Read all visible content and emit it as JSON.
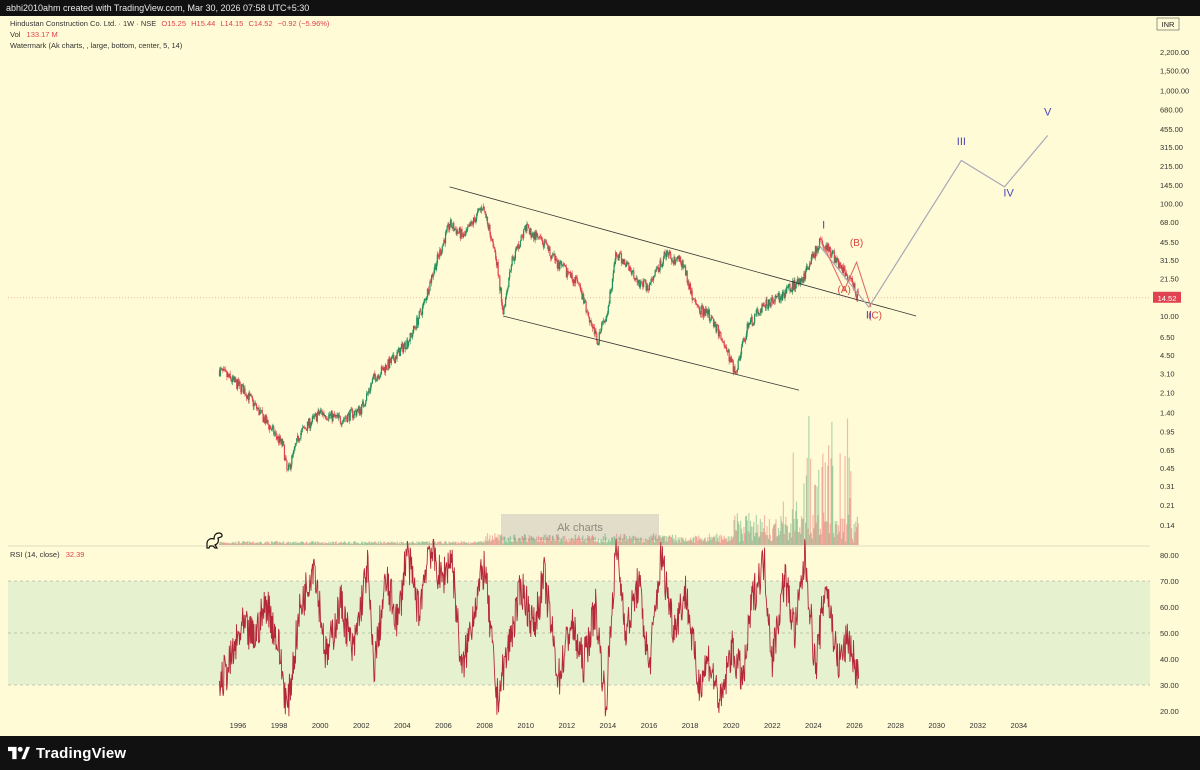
{
  "header": {
    "credit": "abhi2010ahm created with TradingView.com, Mar 30, 2026 07:58 UTC+5:30",
    "symbol_line": "Hindustan Construction Co. Ltd. · 1W · NSE",
    "ohlc": {
      "open": "O15.25",
      "high": "H15.44",
      "low": "L14.15",
      "close": "C14.52",
      "change": "−0.92 (−5.96%)"
    },
    "vol_label": "Vol",
    "vol_value": "133.17 M",
    "watermark_line": "Watermark (Ak charts, , large, bottom, center, 5, 14)",
    "rsi_label": "RSI (14, close)",
    "rsi_value": "32.39"
  },
  "watermark_text": "Ak charts",
  "footer": {
    "brand": "TradingView"
  },
  "colors": {
    "background": "#fffbd6",
    "up": "#1c8f5a",
    "down": "#e0434f",
    "rsi_line": "#b5283a",
    "rsi_band": "#e6f1cf",
    "wave_purple": "#4b44b8",
    "wave_red": "#d9453f",
    "projection": "#a8a8b8",
    "price_tag": "#e0434f"
  },
  "chart_data": {
    "type": "line",
    "scale": "log",
    "currency": "INR",
    "price_axis_ticks": [
      "2,200.00",
      "1,500.00",
      "1,000.00",
      "680.00",
      "455.00",
      "315.00",
      "215.00",
      "145.00",
      "100.00",
      "68.00",
      "45.50",
      "31.50",
      "21.50",
      "14.52",
      "10.00",
      "6.50",
      "4.50",
      "3.10",
      "2.10",
      "1.40",
      "0.95",
      "0.65",
      "0.45",
      "0.31",
      "0.21",
      "0.14"
    ],
    "rsi_axis_ticks": [
      "80.00",
      "70.00",
      "60.00",
      "50.00",
      "40.00",
      "30.00",
      "20.00"
    ],
    "time_axis_ticks": [
      "1996",
      "1998",
      "2000",
      "2002",
      "2004",
      "2006",
      "2008",
      "2010",
      "2012",
      "2014",
      "2016",
      "2018",
      "2020",
      "2022",
      "2024",
      "2026",
      "2028",
      "2030",
      "2032",
      "2034"
    ],
    "last_price": "14.52",
    "price_series_approx": [
      [
        1995.1,
        3.3
      ],
      [
        1996.3,
        2.2
      ],
      [
        1997.3,
        1.2
      ],
      [
        1998.2,
        0.7
      ],
      [
        1998.4,
        0.4
      ],
      [
        1999.0,
        0.9
      ],
      [
        2000.0,
        1.4
      ],
      [
        2001.0,
        1.2
      ],
      [
        2002.0,
        1.5
      ],
      [
        2002.6,
        2.8
      ],
      [
        2003.5,
        4.0
      ],
      [
        2004.4,
        6.5
      ],
      [
        2005.0,
        12.0
      ],
      [
        2005.5,
        25.0
      ],
      [
        2006.3,
        65.0
      ],
      [
        2007.0,
        50.0
      ],
      [
        2007.9,
        95.0
      ],
      [
        2008.5,
        40.0
      ],
      [
        2008.9,
        11.0
      ],
      [
        2009.3,
        30.0
      ],
      [
        2010.0,
        60.0
      ],
      [
        2010.8,
        45.0
      ],
      [
        2011.5,
        30.0
      ],
      [
        2012.5,
        20.0
      ],
      [
        2013.5,
        6.0
      ],
      [
        2014.0,
        12.0
      ],
      [
        2014.4,
        35.0
      ],
      [
        2015.0,
        28.0
      ],
      [
        2015.5,
        20.0
      ],
      [
        2016.0,
        18.0
      ],
      [
        2016.8,
        35.0
      ],
      [
        2017.6,
        30.0
      ],
      [
        2018.3,
        12.0
      ],
      [
        2019.0,
        10.0
      ],
      [
        2019.6,
        6.0
      ],
      [
        2020.2,
        3.1
      ],
      [
        2020.8,
        8.0
      ],
      [
        2021.5,
        12.0
      ],
      [
        2022.2,
        14.0
      ],
      [
        2022.9,
        18.0
      ],
      [
        2023.5,
        22.0
      ],
      [
        2024.0,
        35.0
      ],
      [
        2024.4,
        48.0
      ],
      [
        2024.9,
        35.0
      ],
      [
        2025.3,
        28.0
      ],
      [
        2025.8,
        21.0
      ],
      [
        2026.2,
        14.52
      ]
    ],
    "channel": {
      "upper": [
        [
          2006.3,
          140.0
        ],
        [
          2029.0,
          10.0
        ]
      ],
      "lower": [
        [
          2008.9,
          10.0
        ],
        [
          2023.3,
          2.2
        ]
      ]
    },
    "elliott_waves": {
      "labels": [
        {
          "label": "I",
          "x": 2024.5,
          "y": 60.0
        },
        {
          "label": "II",
          "x": 2026.7,
          "y": 9.5
        },
        {
          "label": "III",
          "x": 2031.2,
          "y": 330.0
        },
        {
          "label": "IV",
          "x": 2033.5,
          "y": 115.0
        },
        {
          "label": "V",
          "x": 2035.4,
          "y": 600.0
        }
      ],
      "correction_labels": [
        {
          "label": "(A)",
          "x": 2025.5,
          "y": 16.0
        },
        {
          "label": "(B)",
          "x": 2026.1,
          "y": 42.0
        },
        {
          "label": "(C)",
          "x": 2027.0,
          "y": 9.5
        }
      ],
      "projection": [
        [
          2024.3,
          42.0
        ],
        [
          2026.7,
          12.0
        ],
        [
          2031.2,
          240.0
        ],
        [
          2033.3,
          140.0
        ],
        [
          2035.4,
          400.0
        ]
      ],
      "abc_path": [
        [
          2024.5,
          42.0
        ],
        [
          2025.5,
          17.0
        ],
        [
          2026.1,
          30.0
        ],
        [
          2026.8,
          12.0
        ]
      ]
    },
    "rsi_series_approx": [
      [
        1995.1,
        30
      ],
      [
        1995.6,
        38
      ],
      [
        1996.2,
        52
      ],
      [
        1996.8,
        48
      ],
      [
        1997.4,
        62
      ],
      [
        1998.0,
        44
      ],
      [
        1998.4,
        20
      ],
      [
        1999.0,
        58
      ],
      [
        1999.7,
        78
      ],
      [
        2000.3,
        40
      ],
      [
        2001.0,
        62
      ],
      [
        2001.6,
        42
      ],
      [
        2002.3,
        76
      ],
      [
        2002.6,
        36
      ],
      [
        2003.2,
        70
      ],
      [
        2003.8,
        54
      ],
      [
        2004.2,
        82
      ],
      [
        2004.8,
        58
      ],
      [
        2005.3,
        84
      ],
      [
        2005.9,
        70
      ],
      [
        2006.4,
        80
      ],
      [
        2006.9,
        34
      ],
      [
        2007.5,
        60
      ],
      [
        2008.0,
        76
      ],
      [
        2008.6,
        24
      ],
      [
        2009.2,
        46
      ],
      [
        2009.8,
        68
      ],
      [
        2010.4,
        52
      ],
      [
        2010.9,
        72
      ],
      [
        2011.6,
        32
      ],
      [
        2012.2,
        54
      ],
      [
        2012.8,
        38
      ],
      [
        2013.4,
        60
      ],
      [
        2013.9,
        22
      ],
      [
        2014.4,
        84
      ],
      [
        2014.9,
        50
      ],
      [
        2015.5,
        70
      ],
      [
        2016.0,
        36
      ],
      [
        2016.6,
        80
      ],
      [
        2017.2,
        52
      ],
      [
        2017.8,
        66
      ],
      [
        2018.4,
        30
      ],
      [
        2018.9,
        40
      ],
      [
        2019.5,
        22
      ],
      [
        2020.0,
        44
      ],
      [
        2020.6,
        32
      ],
      [
        2021.0,
        62
      ],
      [
        2021.6,
        78
      ],
      [
        2022.0,
        40
      ],
      [
        2022.6,
        72
      ],
      [
        2023.1,
        50
      ],
      [
        2023.6,
        80
      ],
      [
        2024.1,
        36
      ],
      [
        2024.6,
        70
      ],
      [
        2025.2,
        38
      ],
      [
        2025.7,
        48
      ],
      [
        2026.2,
        32.39
      ]
    ]
  }
}
